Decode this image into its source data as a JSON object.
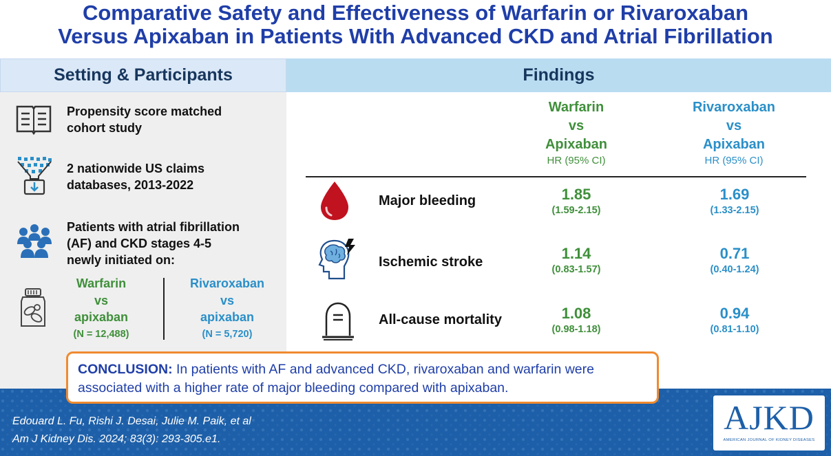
{
  "title": {
    "line1": "Comparative Safety and Effectiveness of Warfarin or Rivaroxaban",
    "line2": "Versus Apixaban in Patients With Advanced CKD and Atrial Fibrillation"
  },
  "setting": {
    "header": "Setting & Participants",
    "items": [
      {
        "icon": "book-icon",
        "text_l1": "Propensity score matched",
        "text_l2": "cohort study"
      },
      {
        "icon": "database-icon",
        "text_l1": "2 nationwide US claims",
        "text_l2": "databases, 2013-2022"
      },
      {
        "icon": "people-icon",
        "text_l1": "Patients with atrial fibrillation",
        "text_l2": "(AF) and CKD stages 4-5",
        "text_l3": "newly initiated on:"
      }
    ],
    "groups": [
      {
        "l1": "Warfarin",
        "l2": "vs",
        "l3": "apixaban",
        "n": "(N = 12,488)",
        "color": "#3f8f3a"
      },
      {
        "l1": "Rivaroxaban",
        "l2": "vs",
        "l3": "apixaban",
        "n": "(N = 5,720)",
        "color": "#2a8fc8"
      }
    ]
  },
  "findings": {
    "header": "Findings",
    "columns": [
      {
        "l1": "Warfarin",
        "l2": "vs",
        "l3": "Apixaban",
        "hr": "HR (95% CI)",
        "color": "#3f8f3a"
      },
      {
        "l1": "Rivaroxaban",
        "l2": "vs",
        "l3": "Apixaban",
        "hr": "HR (95% CI)",
        "color": "#2a8fc8"
      }
    ],
    "rows": [
      {
        "icon": "blood-drop-icon",
        "label": "Major bleeding",
        "warfarin": {
          "hr": "1.85",
          "ci": "(1.59-2.15)"
        },
        "rivaroxaban": {
          "hr": "1.69",
          "ci": "(1.33-2.15)"
        }
      },
      {
        "icon": "brain-stroke-icon",
        "label": "Ischemic stroke",
        "warfarin": {
          "hr": "1.14",
          "ci": "(0.83-1.57)"
        },
        "rivaroxaban": {
          "hr": "0.71",
          "ci": "(0.40-1.24)"
        }
      },
      {
        "icon": "tombstone-icon",
        "label": "All-cause mortality",
        "warfarin": {
          "hr": "1.08",
          "ci": "(0.98-1.18)"
        },
        "rivaroxaban": {
          "hr": "0.94",
          "ci": "(0.81-1.10)"
        }
      }
    ]
  },
  "conclusion": {
    "label": "CONCLUSION:",
    "text": "In patients with AF and advanced CKD, rivaroxaban and warfarin were associated with a higher rate of major bleeding compared with apixaban.",
    "border_color": "#f08a2f"
  },
  "citation": {
    "authors": "Edouard L. Fu, Rishi J. Desai, Julie M. Paik, et al",
    "journal": "Am J Kidney Dis. 2024; 83(3): 293-305.e1."
  },
  "logo": {
    "text": "AJKD",
    "subtitle": "AMERICAN JOURNAL OF KIDNEY DISEASES"
  },
  "colors": {
    "title": "#1f3ea8",
    "footer": "#1d5fa8",
    "green": "#3f8f3a",
    "blue": "#2a8fc8"
  }
}
